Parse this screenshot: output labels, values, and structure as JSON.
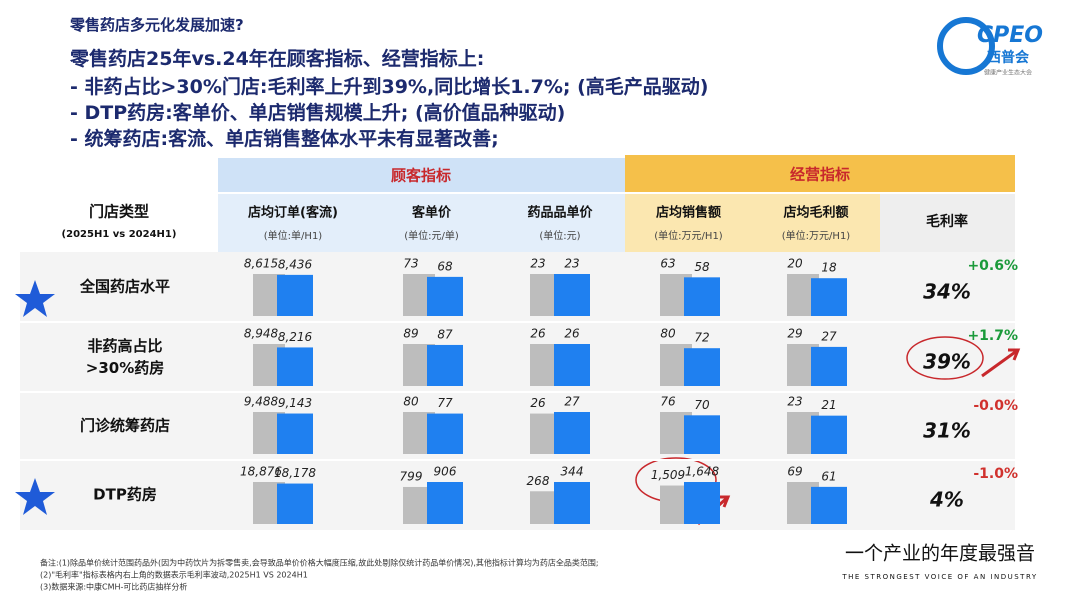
{
  "header": {
    "kicker": "零售药店多元化发展加速?",
    "title": "零售药店25年vs.24年在顾客指标、经营指标上:",
    "bullets": [
      "非药占比>30%门店:毛利率上升到39%,同比增长1.7%; (高毛产品驱动)",
      "DTP药房:客单价、单店销售规模上升; (高价值品种驱动)",
      "统筹药店:客流、单店销售整体水平未有显著改善;"
    ]
  },
  "logo": {
    "name": "CPEO",
    "sub": "西普会",
    "tag": "健康产业生态大会"
  },
  "table": {
    "groups": [
      "顾客指标",
      "经营指标"
    ],
    "row_header": {
      "label": "门店类型",
      "sub": "(2025H1 vs 2024H1)"
    },
    "columns": [
      {
        "name": "店均订单(客流)",
        "unit": "(单位:单/H1)"
      },
      {
        "name": "客单价",
        "unit": "(单位:元/单)"
      },
      {
        "name": "药品品单价",
        "unit": "(单位:元)"
      },
      {
        "name": "店均销售额",
        "unit": "(单位:万元/H1)"
      },
      {
        "name": "店均毛利额",
        "unit": "(单位:万元/H1)"
      }
    ],
    "margin_header": "毛利率",
    "rows": [
      {
        "label": "全国药店水平",
        "values": [
          [
            8615,
            8436
          ],
          [
            73,
            68
          ],
          [
            23,
            23
          ],
          [
            63,
            58
          ],
          [
            20,
            18
          ]
        ],
        "value_labels": [
          [
            "8,615",
            "8,436"
          ],
          [
            "73",
            "68"
          ],
          [
            "23",
            "23"
          ],
          [
            "63",
            "58"
          ],
          [
            "20",
            "18"
          ]
        ],
        "margin": "34%",
        "change": "+0.6%"
      },
      {
        "label": "非药高占比\n>30%药房",
        "values": [
          [
            8948,
            8216
          ],
          [
            89,
            87
          ],
          [
            26,
            26
          ],
          [
            80,
            72
          ],
          [
            29,
            27
          ]
        ],
        "value_labels": [
          [
            "8,948",
            "8,216"
          ],
          [
            "89",
            "87"
          ],
          [
            "26",
            "26"
          ],
          [
            "80",
            "72"
          ],
          [
            "29",
            "27"
          ]
        ],
        "margin": "39%",
        "change": "+1.7%"
      },
      {
        "label": "门诊统筹药店",
        "values": [
          [
            9488,
            9143
          ],
          [
            80,
            77
          ],
          [
            26,
            27
          ],
          [
            76,
            70
          ],
          [
            23,
            21
          ]
        ],
        "value_labels": [
          [
            "9,488",
            "9,143"
          ],
          [
            "80",
            "77"
          ],
          [
            "26",
            "27"
          ],
          [
            "76",
            "70"
          ],
          [
            "23",
            "21"
          ]
        ],
        "margin": "31%",
        "change": "-0.0%"
      },
      {
        "label": "DTP药房",
        "values": [
          [
            18876,
            18178
          ],
          [
            799,
            906
          ],
          [
            268,
            344
          ],
          [
            1509,
            1648
          ],
          [
            69,
            61
          ]
        ],
        "value_labels": [
          [
            "18,876",
            "18,178"
          ],
          [
            "799",
            "906"
          ],
          [
            "268",
            "344"
          ],
          [
            "1,509",
            "1,648"
          ],
          [
            "69",
            "61"
          ]
        ],
        "margin": "4%",
        "change": "-1.0%"
      }
    ]
  },
  "footnotes": [
    "备注:(1)除品单价统计范围药品外(因为中药饮片为拆零售卖,会导致品单价价格大幅度压缩,故此处剔除仅统计药品单价情况),其他指标计算均为药店全品类范围;",
    "(2)\"毛利率\"指标表格内右上角的数据表示毛利率波动,2025H1 VS 2024H1",
    "(3)数据来源:中康CMH-可比药店抽样分析"
  ],
  "slogan": {
    "main": "一个产业的年度最强音",
    "sub": "THE STRONGEST VOICE OF AN INDUSTRY"
  }
}
